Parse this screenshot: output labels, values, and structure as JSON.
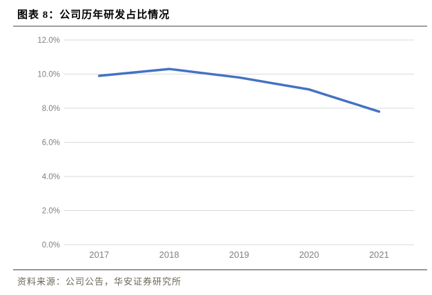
{
  "page": {
    "title": "图表 8：公司历年研发占比情况",
    "source": "资料来源：公司公告，华安证券研究所"
  },
  "colors": {
    "line": "#4472C4",
    "grid": "#D9D9D9",
    "axis_text": "#7F7F7F",
    "title_text": "#000000",
    "source_text": "#6B6657",
    "header_rule": "#9E9E9E",
    "footer_rule": "#3F3F3F",
    "background": "#FFFFFF"
  },
  "chart_data": {
    "type": "line",
    "title": "公司历年研发占比情况",
    "categories": [
      "2017",
      "2018",
      "2019",
      "2020",
      "2021"
    ],
    "series": [
      {
        "name": "研发占比",
        "values": [
          9.9,
          10.3,
          9.8,
          9.1,
          7.8
        ]
      }
    ],
    "xlabel": "",
    "ylabel": "",
    "ylim": [
      0,
      12
    ],
    "ytick_values": [
      0,
      2,
      4,
      6,
      8,
      10,
      12
    ],
    "ytick_labels": [
      "0.0%",
      "2.0%",
      "4.0%",
      "6.0%",
      "8.0%",
      "10.0%",
      "12.0%"
    ],
    "grid": true,
    "legend_position": "none"
  }
}
